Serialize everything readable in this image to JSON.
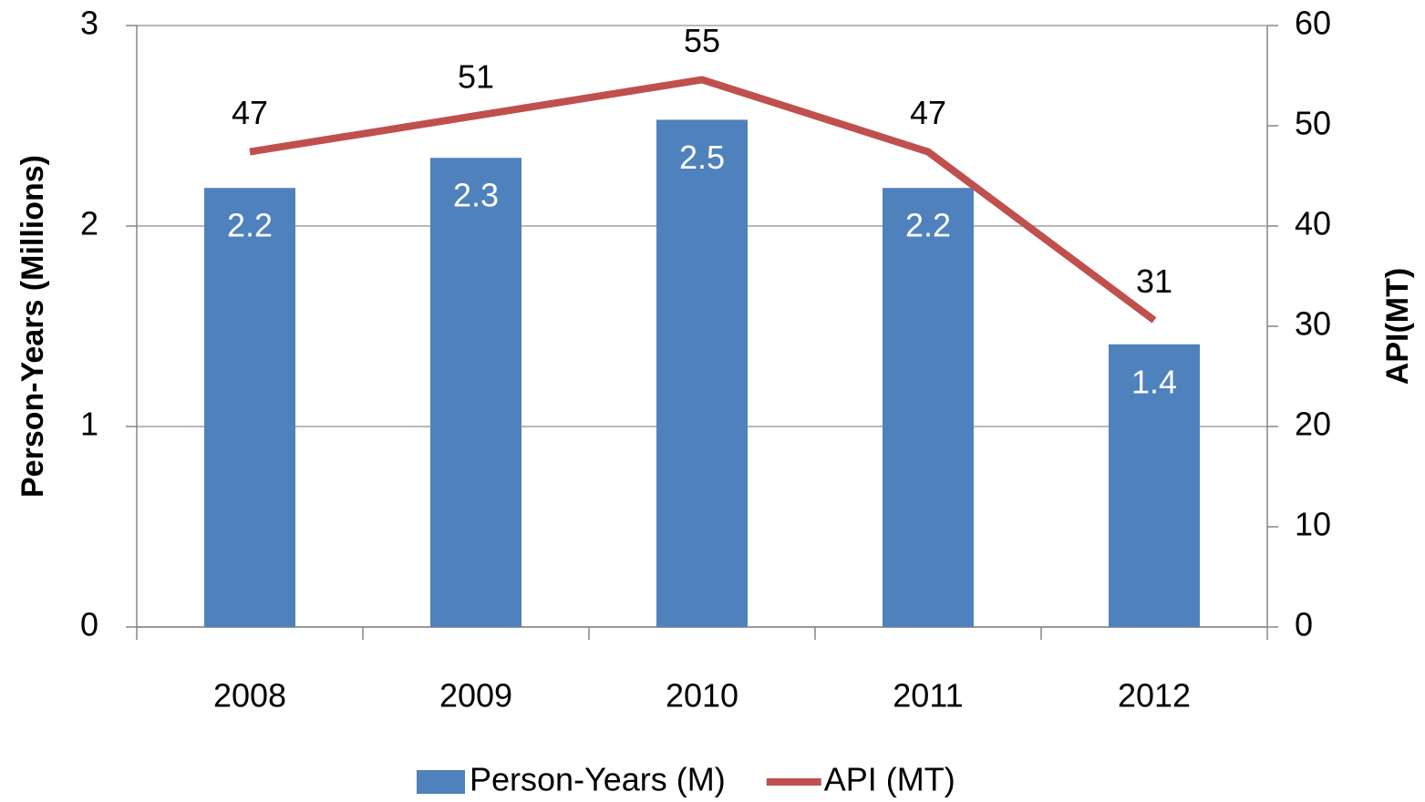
{
  "chart_data": {
    "type": "bar_line",
    "categories": [
      "2008",
      "2009",
      "2010",
      "2011",
      "2012"
    ],
    "series": [
      {
        "name": "Person-Years (M)",
        "type": "bar",
        "color": "#4f81bd",
        "axis": "y",
        "values": [
          2.19,
          2.34,
          2.53,
          2.19,
          1.41
        ],
        "value_labels": [
          "2.2",
          "2.3",
          "2.5",
          "2.2",
          "1.4"
        ]
      },
      {
        "name": "API (MT)",
        "type": "line",
        "color": "#c0504d",
        "axis": "y2",
        "values": [
          47.4,
          51,
          54.6,
          47.4,
          30.6
        ],
        "value_labels": [
          "47",
          "51",
          "55",
          "47",
          "31"
        ]
      }
    ],
    "ylabel": "Person-Years (Millions)",
    "y2label": "API(MT)",
    "ylim": [
      0,
      3
    ],
    "yticks": [
      0,
      1,
      2,
      3
    ],
    "y2lim": [
      0,
      60
    ],
    "y2ticks": [
      0,
      10,
      20,
      30,
      40,
      50,
      60
    ],
    "grid": true,
    "legend": "bottom"
  }
}
